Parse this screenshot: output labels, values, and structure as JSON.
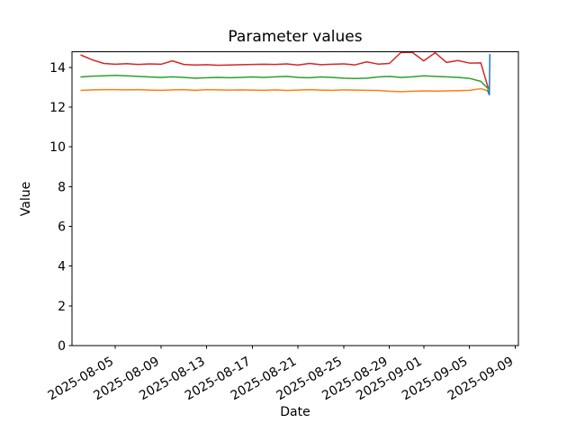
{
  "figure": {
    "background": "#ffffff"
  },
  "chart_data": {
    "type": "line",
    "title": "Parameter values",
    "xlabel": "Date",
    "ylabel": "Value",
    "grid": false,
    "legend": "none",
    "ylim": [
      0,
      14.79
    ],
    "xlim": [
      "2025-08-01T05:00",
      "2025-09-09T07:00"
    ],
    "y_ticks": [
      0,
      2,
      4,
      6,
      8,
      10,
      12,
      14
    ],
    "x_ticks": [
      "2025-08-05",
      "2025-08-09",
      "2025-08-13",
      "2025-08-17",
      "2025-08-21",
      "2025-08-25",
      "2025-08-29",
      "2025-09-01",
      "2025-09-05",
      "2025-09-09"
    ],
    "x_dates": [
      "2025-08-02",
      "2025-08-03",
      "2025-08-04",
      "2025-08-05",
      "2025-08-06",
      "2025-08-07",
      "2025-08-08",
      "2025-08-09",
      "2025-08-10",
      "2025-08-11",
      "2025-08-12",
      "2025-08-13",
      "2025-08-14",
      "2025-08-15",
      "2025-08-16",
      "2025-08-17",
      "2025-08-18",
      "2025-08-19",
      "2025-08-20",
      "2025-08-21",
      "2025-08-22",
      "2025-08-23",
      "2025-08-24",
      "2025-08-25",
      "2025-08-26",
      "2025-08-27",
      "2025-08-28",
      "2025-08-29",
      "2025-08-30",
      "2025-08-31",
      "2025-09-01",
      "2025-09-02",
      "2025-09-03",
      "2025-09-04",
      "2025-09-05",
      "2025-09-06",
      "2025-09-06T16:00"
    ],
    "series": [
      {
        "name": "red-line",
        "color": "#d62728",
        "values": [
          14.62,
          14.38,
          14.2,
          14.16,
          14.19,
          14.15,
          14.18,
          14.16,
          14.33,
          14.15,
          14.12,
          14.14,
          14.11,
          14.12,
          14.14,
          14.15,
          14.16,
          14.15,
          14.18,
          14.12,
          14.2,
          14.14,
          14.16,
          14.18,
          14.13,
          14.28,
          14.17,
          14.2,
          14.75,
          14.76,
          14.33,
          14.74,
          14.25,
          14.35,
          14.22,
          14.23,
          12.93
        ]
      },
      {
        "name": "green-line",
        "color": "#2ca02c",
        "values": [
          13.52,
          13.56,
          13.58,
          13.6,
          13.58,
          13.55,
          13.52,
          13.5,
          13.53,
          13.5,
          13.46,
          13.48,
          13.5,
          13.48,
          13.5,
          13.52,
          13.5,
          13.53,
          13.55,
          13.5,
          13.48,
          13.52,
          13.5,
          13.46,
          13.44,
          13.46,
          13.52,
          13.55,
          13.5,
          13.53,
          13.58,
          13.55,
          13.53,
          13.5,
          13.45,
          13.3,
          12.92
        ]
      },
      {
        "name": "orange-line",
        "color": "#ff7f0e",
        "values": [
          12.85,
          12.87,
          12.88,
          12.88,
          12.87,
          12.88,
          12.86,
          12.85,
          12.87,
          12.88,
          12.85,
          12.88,
          12.87,
          12.86,
          12.87,
          12.86,
          12.85,
          12.87,
          12.84,
          12.86,
          12.88,
          12.86,
          12.85,
          12.87,
          12.86,
          12.85,
          12.84,
          12.8,
          12.78,
          12.8,
          12.82,
          12.81,
          12.82,
          12.83,
          12.85,
          12.93,
          12.82
        ]
      },
      {
        "name": "blue-line",
        "color": "#1f77b4",
        "x": [
          "2025-09-06T14:00",
          "2025-09-06T18:00",
          "2025-09-06T19:00"
        ],
        "values": [
          12.85,
          12.62,
          14.65
        ]
      }
    ]
  }
}
